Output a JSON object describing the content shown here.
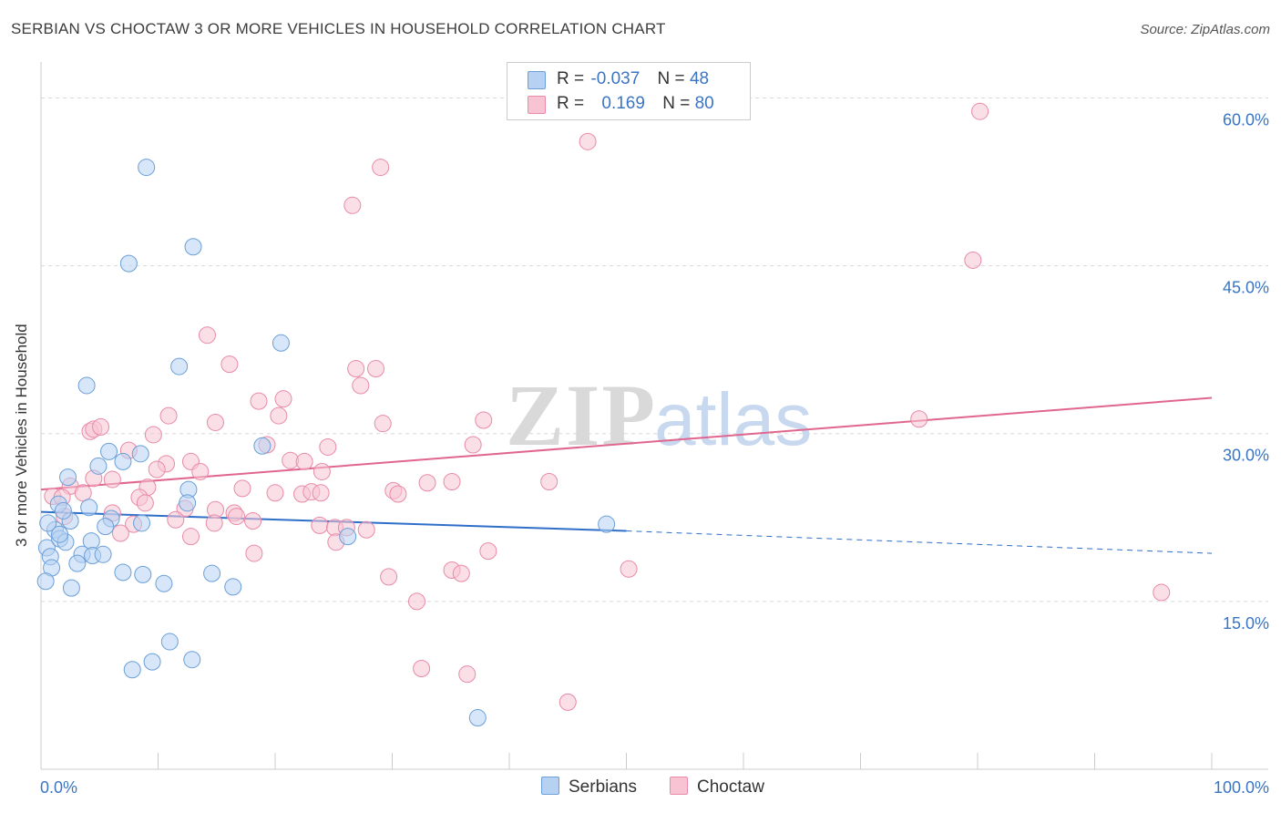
{
  "header": {
    "title": "SERBIAN VS CHOCTAW 3 OR MORE VEHICLES IN HOUSEHOLD CORRELATION CHART",
    "source": "Source: ZipAtlas.com"
  },
  "watermark": {
    "zip": "ZIP",
    "atlas": "atlas"
  },
  "legend": {
    "rows": [
      {
        "r_label": "R =",
        "r_value": "-0.037",
        "n_label": "N =",
        "n_value": "48"
      },
      {
        "r_label": "R =",
        "r_value": "0.169",
        "n_label": "N =",
        "n_value": "80"
      }
    ],
    "bottom": [
      "Serbians",
      "Choctaw"
    ]
  },
  "colors": {
    "serbians_fill": "#b7d1f2",
    "serbians_stroke": "#6a9fd8",
    "serbians_line": "#2f6fc9",
    "choctaw_fill": "#f8c4d4",
    "choctaw_stroke": "#e88aa8",
    "choctaw_line": "#e0668e",
    "axis_text": "#3a75c4",
    "grid": "#d8d8d8"
  },
  "chart_data": {
    "type": "scatter",
    "title": "SERBIAN VS CHOCTAW 3 OR MORE VEHICLES IN HOUSEHOLD CORRELATION CHART",
    "xlabel": "",
    "ylabel": "3 or more Vehicles in Household",
    "xlim": [
      0,
      100
    ],
    "ylim": [
      0,
      61.5
    ],
    "x_tick_labels": [
      "0.0%",
      "100.0%"
    ],
    "y_ticks": [
      15,
      30,
      45,
      60
    ],
    "y_tick_labels": [
      "15.0%",
      "30.0%",
      "45.0%",
      "60.0%"
    ],
    "series": [
      {
        "name": "Serbians",
        "R": -0.037,
        "N": 48,
        "trend": {
          "x0": 0,
          "y0": 23.0,
          "x1": 50,
          "y1": 21.3,
          "dashed_to_x": 100,
          "dashed_to_y": 19.3
        },
        "points": [
          [
            9.0,
            53.8
          ],
          [
            13.0,
            46.7
          ],
          [
            7.5,
            45.2
          ],
          [
            20.5,
            38.1
          ],
          [
            11.8,
            36.0
          ],
          [
            3.9,
            34.3
          ],
          [
            18.9,
            28.9
          ],
          [
            5.8,
            28.4
          ],
          [
            8.5,
            28.2
          ],
          [
            7.0,
            27.5
          ],
          [
            4.9,
            27.1
          ],
          [
            2.3,
            26.1
          ],
          [
            12.6,
            25.0
          ],
          [
            1.5,
            23.7
          ],
          [
            4.1,
            23.4
          ],
          [
            12.5,
            23.8
          ],
          [
            6.0,
            22.4
          ],
          [
            2.5,
            22.2
          ],
          [
            1.2,
            21.4
          ],
          [
            8.6,
            22.0
          ],
          [
            0.5,
            19.8
          ],
          [
            0.8,
            19.0
          ],
          [
            1.6,
            20.6
          ],
          [
            2.1,
            20.3
          ],
          [
            4.3,
            20.4
          ],
          [
            5.5,
            21.7
          ],
          [
            3.5,
            19.2
          ],
          [
            4.4,
            19.1
          ],
          [
            5.3,
            19.2
          ],
          [
            3.1,
            18.4
          ],
          [
            0.9,
            18.0
          ],
          [
            0.4,
            16.8
          ],
          [
            7.0,
            17.6
          ],
          [
            8.7,
            17.4
          ],
          [
            14.6,
            17.5
          ],
          [
            10.5,
            16.6
          ],
          [
            16.4,
            16.3
          ],
          [
            2.6,
            16.2
          ],
          [
            26.2,
            20.8
          ],
          [
            48.3,
            21.9
          ],
          [
            11.0,
            11.4
          ],
          [
            12.9,
            9.8
          ],
          [
            9.5,
            9.6
          ],
          [
            7.8,
            8.9
          ],
          [
            37.3,
            4.6
          ],
          [
            1.6,
            21.0
          ],
          [
            0.6,
            22.0
          ],
          [
            1.9,
            23.1
          ]
        ]
      },
      {
        "name": "Choctaw",
        "R": 0.169,
        "N": 80,
        "trend": {
          "x0": 0,
          "y0": 25.0,
          "x1": 100,
          "y1": 33.2
        },
        "points": [
          [
            80.2,
            58.8
          ],
          [
            46.7,
            56.1
          ],
          [
            29.0,
            53.8
          ],
          [
            26.6,
            50.4
          ],
          [
            79.6,
            45.5
          ],
          [
            14.2,
            38.8
          ],
          [
            16.1,
            36.2
          ],
          [
            26.9,
            35.8
          ],
          [
            28.6,
            35.8
          ],
          [
            27.3,
            34.3
          ],
          [
            18.6,
            32.9
          ],
          [
            20.7,
            33.1
          ],
          [
            10.9,
            31.6
          ],
          [
            20.3,
            31.6
          ],
          [
            14.9,
            31.0
          ],
          [
            37.8,
            31.2
          ],
          [
            4.2,
            30.2
          ],
          [
            4.5,
            30.4
          ],
          [
            5.1,
            30.6
          ],
          [
            9.6,
            29.9
          ],
          [
            75.0,
            31.3
          ],
          [
            29.2,
            30.9
          ],
          [
            19.3,
            29.0
          ],
          [
            24.5,
            28.8
          ],
          [
            36.9,
            29.0
          ],
          [
            7.5,
            28.5
          ],
          [
            10.7,
            27.3
          ],
          [
            12.8,
            27.5
          ],
          [
            21.3,
            27.6
          ],
          [
            22.5,
            27.5
          ],
          [
            24.0,
            26.6
          ],
          [
            9.9,
            26.8
          ],
          [
            13.6,
            26.6
          ],
          [
            4.5,
            26.0
          ],
          [
            6.1,
            25.9
          ],
          [
            2.5,
            25.3
          ],
          [
            9.1,
            25.2
          ],
          [
            17.2,
            25.1
          ],
          [
            20.0,
            24.7
          ],
          [
            22.3,
            24.6
          ],
          [
            23.1,
            24.8
          ],
          [
            23.9,
            24.7
          ],
          [
            30.1,
            24.9
          ],
          [
            30.5,
            24.6
          ],
          [
            33.0,
            25.6
          ],
          [
            35.1,
            25.7
          ],
          [
            43.4,
            25.7
          ],
          [
            1.0,
            24.4
          ],
          [
            1.8,
            24.3
          ],
          [
            8.4,
            24.3
          ],
          [
            8.9,
            23.8
          ],
          [
            12.3,
            23.3
          ],
          [
            14.9,
            23.2
          ],
          [
            16.5,
            22.9
          ],
          [
            6.1,
            22.9
          ],
          [
            2.0,
            22.6
          ],
          [
            11.5,
            22.3
          ],
          [
            7.9,
            21.9
          ],
          [
            18.1,
            22.2
          ],
          [
            23.8,
            21.8
          ],
          [
            25.1,
            21.6
          ],
          [
            26.1,
            21.6
          ],
          [
            27.8,
            21.4
          ],
          [
            6.8,
            21.1
          ],
          [
            12.8,
            20.8
          ],
          [
            25.2,
            20.3
          ],
          [
            18.2,
            19.3
          ],
          [
            38.2,
            19.5
          ],
          [
            35.1,
            17.8
          ],
          [
            35.9,
            17.5
          ],
          [
            29.7,
            17.2
          ],
          [
            50.2,
            17.9
          ],
          [
            95.7,
            15.8
          ],
          [
            32.1,
            15.0
          ],
          [
            32.5,
            9.0
          ],
          [
            36.4,
            8.5
          ],
          [
            45.0,
            6.0
          ],
          [
            14.8,
            22.0
          ],
          [
            16.7,
            22.6
          ],
          [
            3.6,
            24.7
          ]
        ]
      }
    ]
  }
}
